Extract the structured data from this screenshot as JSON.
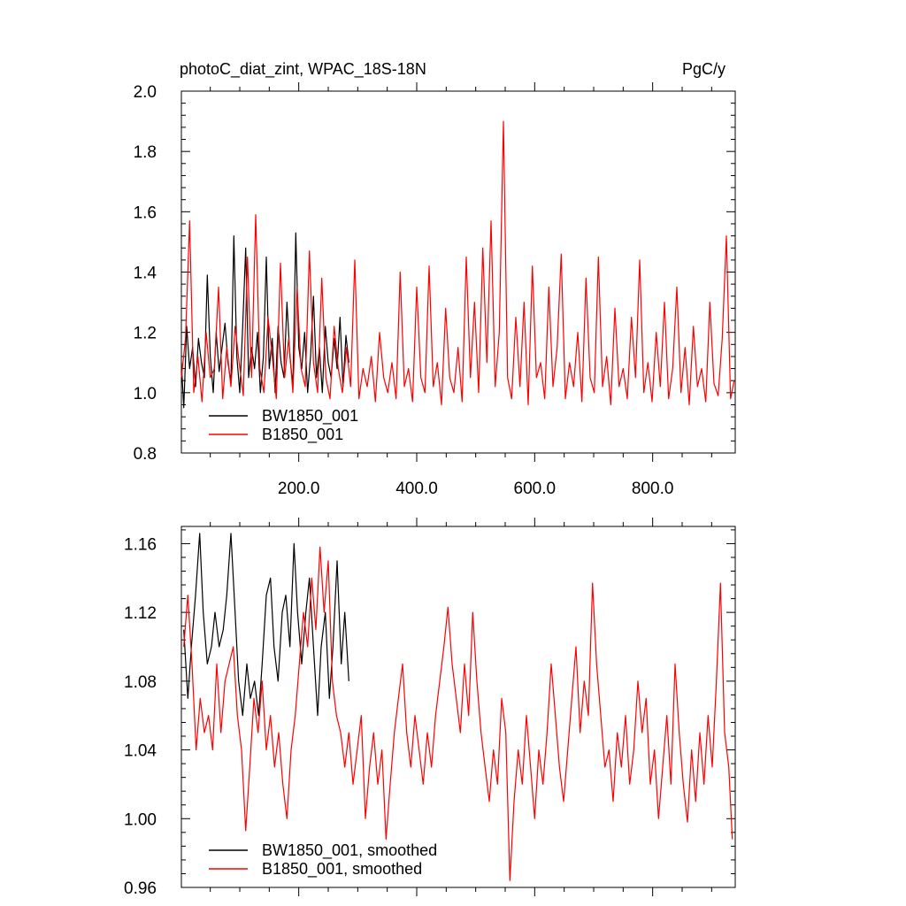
{
  "figure": {
    "title_left": "photoC_diat_zint, WPAC_18S-18N",
    "title_right": "PgC/y"
  },
  "colors": {
    "BW1850_001": "#000000",
    "B1850_001": "#ff0000"
  },
  "chart_data": [
    {
      "type": "line",
      "title": "photoC_diat_zint, WPAC_18S-18N",
      "units": "PgC/y",
      "xlabel": "",
      "ylabel": "",
      "xlim": [
        1,
        940
      ],
      "ylim": [
        0.8,
        2.0
      ],
      "x_ticks": [
        200,
        400,
        600,
        800
      ],
      "x_tick_labels": [
        "200.0",
        "400.0",
        "600.0",
        "800.0"
      ],
      "y_ticks": [
        0.8,
        1.0,
        1.2,
        1.4,
        1.6,
        1.8,
        2.0
      ],
      "y_tick_labels": [
        "0.8",
        "1.0",
        "1.2",
        "1.4",
        "1.6",
        "1.8",
        "2.0"
      ],
      "legend_position": "bottom-left",
      "series": [
        {
          "name": "BW1850_001",
          "color": "#000000",
          "x": [
            1,
            5,
            10,
            15,
            20,
            25,
            30,
            35,
            40,
            45,
            50,
            55,
            60,
            65,
            70,
            75,
            80,
            85,
            90,
            95,
            100,
            105,
            110,
            115,
            120,
            125,
            130,
            135,
            140,
            145,
            150,
            155,
            160,
            165,
            170,
            175,
            180,
            185,
            190,
            195,
            200,
            205,
            210,
            215,
            220,
            225,
            230,
            235,
            240,
            245,
            250,
            255,
            260,
            265,
            270,
            275,
            280,
            285
          ],
          "values": [
            1.1,
            0.95,
            1.22,
            1.08,
            1.15,
            1.02,
            1.18,
            1.1,
            1.05,
            1.39,
            1.12,
            1.0,
            1.2,
            1.07,
            1.15,
            1.23,
            1.1,
            1.03,
            1.52,
            1.12,
            1.0,
            1.22,
            1.48,
            1.05,
            1.15,
            1.08,
            1.2,
            1.0,
            1.12,
            1.45,
            1.08,
            1.18,
            1.0,
            1.22,
            1.1,
            1.05,
            1.3,
            1.12,
            1.02,
            1.53,
            1.15,
            1.08,
            1.2,
            1.0,
            1.12,
            1.32,
            1.05,
            1.15,
            1.0,
            1.22,
            1.1,
            1.05,
            1.18,
            1.08,
            1.25,
            1.02,
            1.19,
            1.1
          ]
        },
        {
          "name": "B1850_001",
          "color": "#ff0000",
          "x": [
            1,
            8,
            15,
            22,
            29,
            36,
            43,
            50,
            57,
            64,
            71,
            78,
            85,
            92,
            99,
            106,
            113,
            120,
            127,
            134,
            141,
            148,
            155,
            162,
            169,
            176,
            183,
            190,
            197,
            204,
            211,
            218,
            225,
            232,
            239,
            246,
            253,
            260,
            267,
            274,
            281,
            288,
            295,
            302,
            309,
            316,
            323,
            330,
            337,
            344,
            351,
            358,
            365,
            372,
            379,
            386,
            393,
            400,
            407,
            414,
            421,
            428,
            435,
            442,
            449,
            456,
            463,
            470,
            477,
            484,
            491,
            498,
            505,
            512,
            519,
            526,
            533,
            540,
            547,
            554,
            561,
            568,
            575,
            582,
            589,
            596,
            603,
            610,
            617,
            624,
            631,
            638,
            645,
            652,
            659,
            666,
            673,
            680,
            687,
            694,
            701,
            708,
            715,
            722,
            729,
            736,
            743,
            750,
            757,
            764,
            771,
            778,
            785,
            792,
            799,
            806,
            813,
            820,
            827,
            834,
            841,
            848,
            855,
            862,
            869,
            876,
            883,
            890,
            897,
            904,
            911,
            918,
            925,
            932,
            938
          ],
          "values": [
            1.05,
            1.18,
            1.57,
            1.0,
            1.12,
            0.97,
            1.2,
            1.05,
            1.08,
            1.35,
            0.98,
            1.15,
            1.02,
            1.22,
            1.1,
            0.99,
            1.45,
            1.05,
            1.59,
            1.08,
            1.0,
            1.25,
            1.12,
            0.98,
            1.43,
            1.05,
            1.18,
            1.0,
            1.35,
            1.08,
            1.02,
            1.47,
            1.1,
            1.0,
            1.38,
            1.05,
            0.98,
            1.22,
            1.08,
            1.0,
            1.15,
            1.02,
            1.44,
            0.98,
            1.08,
            1.02,
            1.12,
            0.97,
            1.2,
            1.05,
            1.0,
            1.1,
            0.98,
            1.4,
            1.02,
            1.08,
            0.97,
            1.35,
            1.05,
            1.0,
            1.42,
            1.02,
            1.1,
            0.96,
            1.28,
            1.05,
            1.0,
            1.15,
            0.97,
            1.45,
            1.05,
            1.3,
            1.0,
            1.48,
            1.1,
            1.57,
            1.02,
            1.2,
            1.9,
            1.05,
            0.98,
            1.25,
            1.02,
            1.3,
            0.96,
            1.42,
            1.05,
            1.1,
            0.98,
            1.35,
            1.02,
            1.15,
            1.46,
            0.98,
            1.1,
            1.02,
            1.2,
            0.97,
            1.38,
            1.05,
            1.0,
            1.45,
            1.02,
            1.12,
            0.96,
            1.28,
            1.02,
            1.08,
            0.98,
            1.25,
            1.05,
            1.44,
            1.0,
            1.1,
            0.97,
            1.2,
            1.02,
            1.3,
            0.98,
            1.08,
            1.35,
            1.0,
            1.15,
            0.96,
            1.22,
            1.02,
            1.08,
            0.97,
            1.3,
            1.03,
            0.99,
            1.18,
            1.52,
            0.98,
            1.04
          ]
        }
      ]
    },
    {
      "type": "line",
      "title": "",
      "xlabel": "",
      "ylabel": "",
      "xlim": [
        1,
        940
      ],
      "ylim": [
        0.96,
        1.17
      ],
      "x_ticks": [
        200,
        400,
        600,
        800
      ],
      "x_tick_labels": [],
      "y_ticks": [
        0.96,
        1.0,
        1.04,
        1.08,
        1.12,
        1.16
      ],
      "y_tick_labels": [
        "0.96",
        "1.00",
        "1.04",
        "1.08",
        "1.12",
        "1.16"
      ],
      "legend_position": "bottom-left",
      "series": [
        {
          "name": "BW1850_001, smoothed",
          "color": "#000000",
          "x": [
            5,
            12,
            18,
            25,
            32,
            38,
            45,
            52,
            58,
            65,
            72,
            78,
            85,
            92,
            98,
            105,
            112,
            118,
            125,
            132,
            138,
            145,
            152,
            158,
            165,
            172,
            178,
            185,
            192,
            198,
            205,
            212,
            218,
            225,
            232,
            238,
            245,
            252,
            258,
            265,
            272,
            278,
            285
          ],
          "values": [
            1.11,
            1.07,
            1.1,
            1.13,
            1.166,
            1.12,
            1.09,
            1.1,
            1.12,
            1.1,
            1.11,
            1.13,
            1.166,
            1.12,
            1.08,
            1.06,
            1.09,
            1.07,
            1.08,
            1.06,
            1.09,
            1.13,
            1.14,
            1.1,
            1.08,
            1.12,
            1.13,
            1.1,
            1.16,
            1.12,
            1.09,
            1.12,
            1.14,
            1.1,
            1.06,
            1.1,
            1.12,
            1.07,
            1.1,
            1.15,
            1.09,
            1.12,
            1.08
          ]
        },
        {
          "name": "B1850_001, smoothed",
          "color": "#ff0000",
          "x": [
            5,
            12,
            19,
            26,
            33,
            40,
            47,
            54,
            61,
            68,
            75,
            82,
            89,
            96,
            103,
            110,
            117,
            124,
            131,
            138,
            145,
            152,
            159,
            166,
            173,
            180,
            187,
            194,
            201,
            208,
            215,
            222,
            229,
            236,
            243,
            250,
            257,
            264,
            271,
            278,
            285,
            292,
            299,
            306,
            313,
            320,
            327,
            334,
            341,
            348,
            355,
            362,
            369,
            376,
            383,
            390,
            397,
            404,
            411,
            418,
            425,
            432,
            439,
            446,
            453,
            460,
            467,
            474,
            481,
            488,
            495,
            502,
            509,
            516,
            523,
            530,
            537,
            544,
            551,
            558,
            565,
            572,
            579,
            586,
            593,
            600,
            607,
            614,
            621,
            628,
            635,
            642,
            649,
            656,
            663,
            670,
            677,
            684,
            691,
            698,
            705,
            712,
            719,
            726,
            733,
            740,
            747,
            754,
            761,
            768,
            775,
            782,
            789,
            796,
            803,
            810,
            817,
            824,
            831,
            838,
            845,
            852,
            859,
            866,
            873,
            880,
            887,
            894,
            901,
            908,
            915,
            922,
            929,
            935
          ],
          "values": [
            1.1,
            1.13,
            1.09,
            1.04,
            1.07,
            1.05,
            1.06,
            1.04,
            1.09,
            1.05,
            1.08,
            1.09,
            1.1,
            1.06,
            1.04,
            0.993,
            1.03,
            1.07,
            1.05,
            1.08,
            1.04,
            1.06,
            1.03,
            1.05,
            1.02,
            1.0,
            1.04,
            1.06,
            1.09,
            1.12,
            1.1,
            1.14,
            1.11,
            1.158,
            1.12,
            1.15,
            1.08,
            1.06,
            1.05,
            1.03,
            1.05,
            1.02,
            1.04,
            1.06,
            1.0,
            1.03,
            1.05,
            1.02,
            1.04,
            0.988,
            1.02,
            1.05,
            1.07,
            1.09,
            1.05,
            1.03,
            1.06,
            1.04,
            1.02,
            1.05,
            1.03,
            1.06,
            1.08,
            1.1,
            1.123,
            1.09,
            1.07,
            1.05,
            1.09,
            1.06,
            1.12,
            1.08,
            1.05,
            1.03,
            1.01,
            1.04,
            1.02,
            1.07,
            1.05,
            0.964,
            1.01,
            1.04,
            1.02,
            1.06,
            1.03,
            1.0,
            1.04,
            1.02,
            1.05,
            1.09,
            1.06,
            1.03,
            1.01,
            1.04,
            1.07,
            1.1,
            1.05,
            1.08,
            1.06,
            1.137,
            1.09,
            1.06,
            1.03,
            1.04,
            1.01,
            1.05,
            1.03,
            1.06,
            1.02,
            1.04,
            1.08,
            1.05,
            1.07,
            1.02,
            1.04,
            1.0,
            1.03,
            1.06,
            1.02,
            1.09,
            1.05,
            1.02,
            0.998,
            1.04,
            1.01,
            1.05,
            1.02,
            1.06,
            1.03,
            1.08,
            1.137,
            1.05,
            1.03,
            0.988
          ]
        }
      ]
    }
  ]
}
